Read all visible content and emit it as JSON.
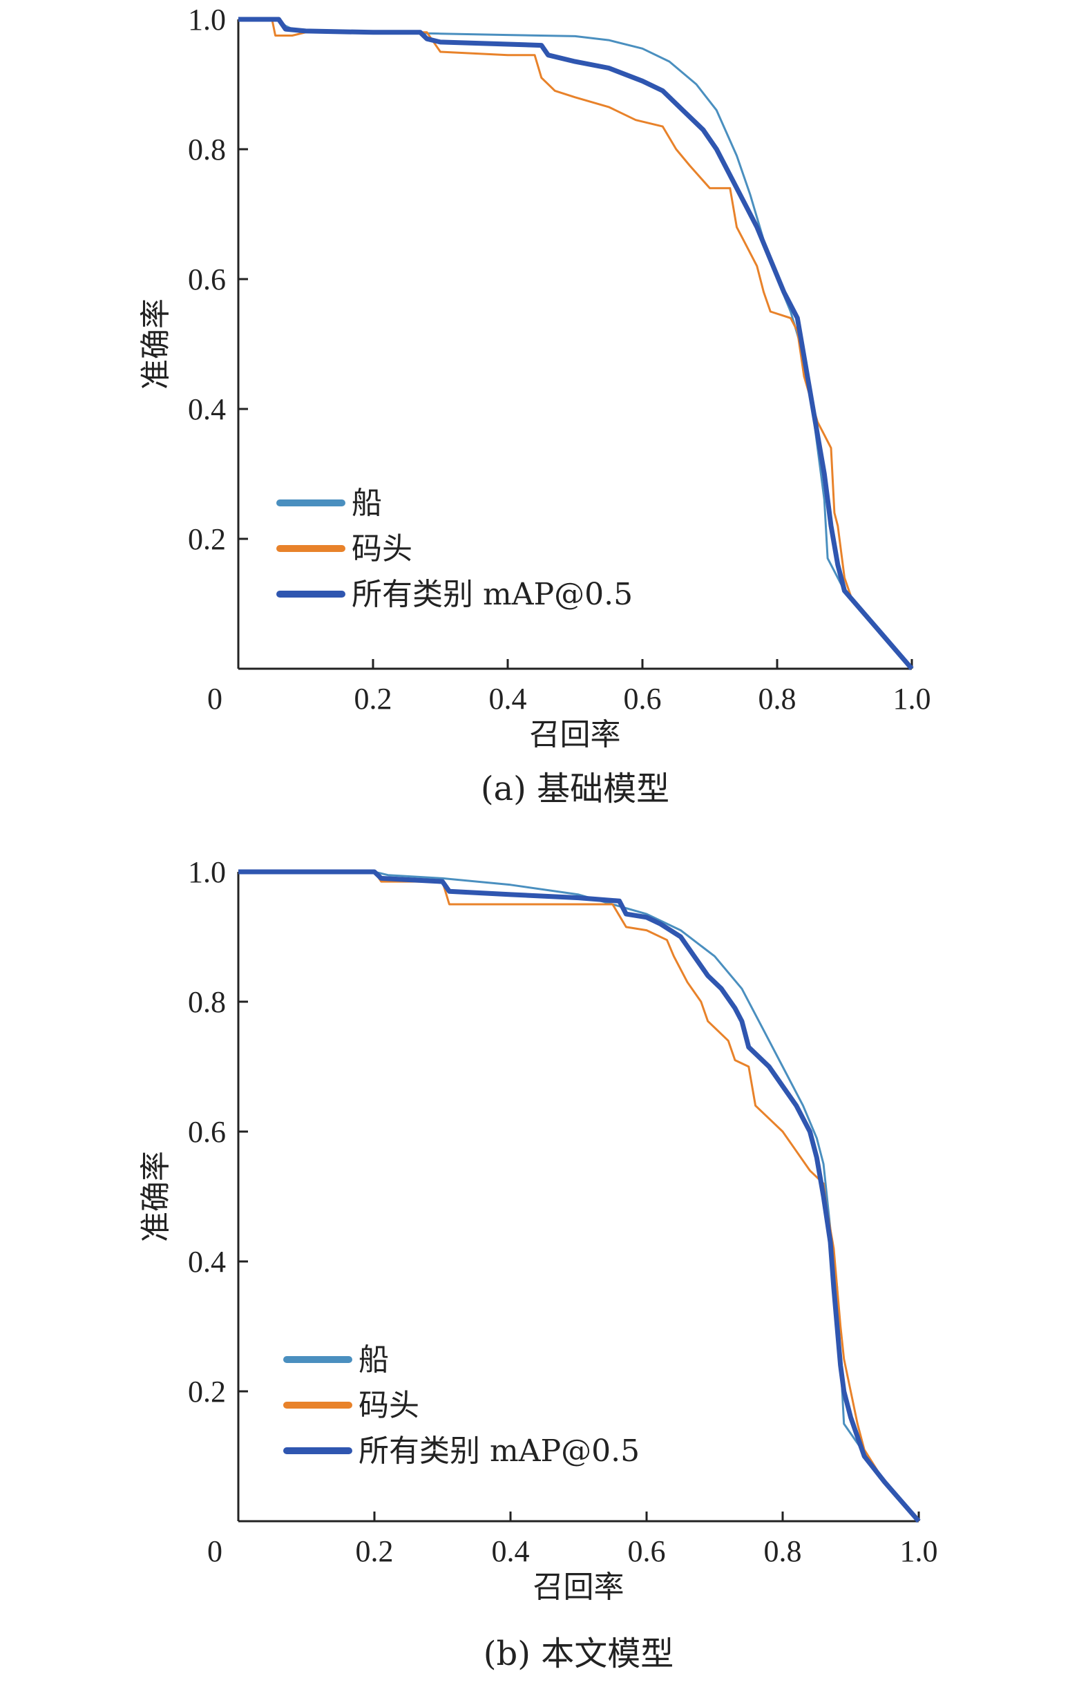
{
  "chart_data": [
    {
      "type": "line",
      "caption": "(a) 基础模型",
      "xlabel": "召回率",
      "ylabel": "准确率",
      "xlim": [
        0,
        1.0
      ],
      "ylim": [
        0,
        1.0
      ],
      "x_ticks": [
        "0",
        "0.2",
        "0.4",
        "0.6",
        "0.8",
        "1.0"
      ],
      "y_ticks": [
        "0.2",
        "0.4",
        "0.6",
        "0.8",
        "1.0"
      ],
      "legend_placement": "lower-left",
      "series": [
        {
          "name": "船",
          "color": "#4a8fbf",
          "points": [
            [
              0,
              1.0
            ],
            [
              0.06,
              1.0
            ],
            [
              0.07,
              0.99
            ],
            [
              0.08,
              0.985
            ],
            [
              0.1,
              0.982
            ],
            [
              0.2,
              0.98
            ],
            [
              0.3,
              0.978
            ],
            [
              0.4,
              0.976
            ],
            [
              0.5,
              0.974
            ],
            [
              0.55,
              0.968
            ],
            [
              0.6,
              0.955
            ],
            [
              0.64,
              0.935
            ],
            [
              0.68,
              0.9
            ],
            [
              0.71,
              0.86
            ],
            [
              0.74,
              0.79
            ],
            [
              0.76,
              0.73
            ],
            [
              0.78,
              0.66
            ],
            [
              0.8,
              0.6
            ],
            [
              0.82,
              0.55
            ],
            [
              0.84,
              0.48
            ],
            [
              0.855,
              0.38
            ],
            [
              0.87,
              0.26
            ],
            [
              0.875,
              0.17
            ],
            [
              0.89,
              0.14
            ],
            [
              0.9,
              0.12
            ],
            [
              0.95,
              0.06
            ],
            [
              1.0,
              0.0
            ]
          ]
        },
        {
          "name": "码头",
          "color": "#e8822a",
          "points": [
            [
              0,
              1.0
            ],
            [
              0.05,
              1.0
            ],
            [
              0.055,
              0.975
            ],
            [
              0.08,
              0.975
            ],
            [
              0.1,
              0.98
            ],
            [
              0.28,
              0.98
            ],
            [
              0.3,
              0.95
            ],
            [
              0.4,
              0.945
            ],
            [
              0.44,
              0.945
            ],
            [
              0.45,
              0.91
            ],
            [
              0.47,
              0.89
            ],
            [
              0.5,
              0.88
            ],
            [
              0.55,
              0.865
            ],
            [
              0.59,
              0.845
            ],
            [
              0.63,
              0.835
            ],
            [
              0.65,
              0.8
            ],
            [
              0.67,
              0.775
            ],
            [
              0.7,
              0.74
            ],
            [
              0.73,
              0.74
            ],
            [
              0.74,
              0.68
            ],
            [
              0.75,
              0.66
            ],
            [
              0.77,
              0.62
            ],
            [
              0.78,
              0.58
            ],
            [
              0.79,
              0.55
            ],
            [
              0.82,
              0.54
            ],
            [
              0.83,
              0.52
            ],
            [
              0.84,
              0.45
            ],
            [
              0.86,
              0.38
            ],
            [
              0.87,
              0.36
            ],
            [
              0.88,
              0.34
            ],
            [
              0.885,
              0.24
            ],
            [
              0.89,
              0.22
            ],
            [
              0.9,
              0.14
            ],
            [
              0.91,
              0.11
            ],
            [
              0.95,
              0.06
            ],
            [
              1.0,
              0.0
            ]
          ]
        },
        {
          "name": "所有类别 mAP@0.5",
          "color": "#2f56b0",
          "points": [
            [
              0,
              1.0
            ],
            [
              0.06,
              1.0
            ],
            [
              0.07,
              0.985
            ],
            [
              0.1,
              0.982
            ],
            [
              0.2,
              0.98
            ],
            [
              0.27,
              0.98
            ],
            [
              0.28,
              0.97
            ],
            [
              0.3,
              0.965
            ],
            [
              0.45,
              0.96
            ],
            [
              0.46,
              0.945
            ],
            [
              0.5,
              0.935
            ],
            [
              0.55,
              0.925
            ],
            [
              0.6,
              0.905
            ],
            [
              0.63,
              0.89
            ],
            [
              0.66,
              0.86
            ],
            [
              0.69,
              0.83
            ],
            [
              0.71,
              0.8
            ],
            [
              0.73,
              0.76
            ],
            [
              0.75,
              0.72
            ],
            [
              0.77,
              0.68
            ],
            [
              0.79,
              0.63
            ],
            [
              0.81,
              0.58
            ],
            [
              0.83,
              0.54
            ],
            [
              0.845,
              0.45
            ],
            [
              0.86,
              0.36
            ],
            [
              0.87,
              0.3
            ],
            [
              0.88,
              0.22
            ],
            [
              0.89,
              0.16
            ],
            [
              0.9,
              0.12
            ],
            [
              0.95,
              0.06
            ],
            [
              1.0,
              0.0
            ]
          ]
        }
      ]
    },
    {
      "type": "line",
      "caption": "(b) 本文模型",
      "xlabel": "召回率",
      "ylabel": "准确率",
      "xlim": [
        0,
        1.0
      ],
      "ylim": [
        0,
        1.0
      ],
      "x_ticks": [
        "0",
        "0.2",
        "0.4",
        "0.6",
        "0.8",
        "1.0"
      ],
      "y_ticks": [
        "0.2",
        "0.4",
        "0.6",
        "0.8",
        "1.0"
      ],
      "legend_placement": "lower-left",
      "series": [
        {
          "name": "船",
          "color": "#4a8fbf",
          "points": [
            [
              0,
              1.0
            ],
            [
              0.2,
              1.0
            ],
            [
              0.22,
              0.995
            ],
            [
              0.3,
              0.99
            ],
            [
              0.4,
              0.98
            ],
            [
              0.5,
              0.965
            ],
            [
              0.55,
              0.95
            ],
            [
              0.6,
              0.935
            ],
            [
              0.65,
              0.91
            ],
            [
              0.7,
              0.87
            ],
            [
              0.74,
              0.82
            ],
            [
              0.77,
              0.76
            ],
            [
              0.8,
              0.7
            ],
            [
              0.83,
              0.64
            ],
            [
              0.85,
              0.59
            ],
            [
              0.86,
              0.55
            ],
            [
              0.87,
              0.45
            ],
            [
              0.88,
              0.36
            ],
            [
              0.885,
              0.25
            ],
            [
              0.89,
              0.15
            ],
            [
              0.91,
              0.12
            ],
            [
              0.95,
              0.06
            ],
            [
              1.0,
              0.0
            ]
          ]
        },
        {
          "name": "码头",
          "color": "#e8822a",
          "points": [
            [
              0,
              1.0
            ],
            [
              0.2,
              1.0
            ],
            [
              0.21,
              0.985
            ],
            [
              0.3,
              0.985
            ],
            [
              0.31,
              0.95
            ],
            [
              0.45,
              0.95
            ],
            [
              0.55,
              0.95
            ],
            [
              0.57,
              0.915
            ],
            [
              0.6,
              0.91
            ],
            [
              0.63,
              0.895
            ],
            [
              0.64,
              0.87
            ],
            [
              0.66,
              0.83
            ],
            [
              0.68,
              0.8
            ],
            [
              0.69,
              0.77
            ],
            [
              0.7,
              0.76
            ],
            [
              0.72,
              0.74
            ],
            [
              0.73,
              0.71
            ],
            [
              0.75,
              0.7
            ],
            [
              0.76,
              0.64
            ],
            [
              0.78,
              0.62
            ],
            [
              0.8,
              0.6
            ],
            [
              0.82,
              0.57
            ],
            [
              0.84,
              0.54
            ],
            [
              0.86,
              0.52
            ],
            [
              0.865,
              0.48
            ],
            [
              0.875,
              0.42
            ],
            [
              0.88,
              0.36
            ],
            [
              0.885,
              0.3
            ],
            [
              0.89,
              0.25
            ],
            [
              0.9,
              0.2
            ],
            [
              0.91,
              0.15
            ],
            [
              0.92,
              0.11
            ],
            [
              0.95,
              0.06
            ],
            [
              1.0,
              0.0
            ]
          ]
        },
        {
          "name": "所有类别 mAP@0.5",
          "color": "#2f56b0",
          "points": [
            [
              0,
              1.0
            ],
            [
              0.2,
              1.0
            ],
            [
              0.21,
              0.99
            ],
            [
              0.3,
              0.985
            ],
            [
              0.31,
              0.97
            ],
            [
              0.4,
              0.965
            ],
            [
              0.5,
              0.96
            ],
            [
              0.56,
              0.955
            ],
            [
              0.57,
              0.935
            ],
            [
              0.6,
              0.93
            ],
            [
              0.62,
              0.92
            ],
            [
              0.65,
              0.9
            ],
            [
              0.67,
              0.87
            ],
            [
              0.69,
              0.84
            ],
            [
              0.71,
              0.82
            ],
            [
              0.73,
              0.79
            ],
            [
              0.74,
              0.77
            ],
            [
              0.75,
              0.73
            ],
            [
              0.78,
              0.7
            ],
            [
              0.8,
              0.67
            ],
            [
              0.82,
              0.64
            ],
            [
              0.84,
              0.6
            ],
            [
              0.85,
              0.56
            ],
            [
              0.86,
              0.5
            ],
            [
              0.87,
              0.43
            ],
            [
              0.875,
              0.36
            ],
            [
              0.88,
              0.3
            ],
            [
              0.885,
              0.24
            ],
            [
              0.89,
              0.2
            ],
            [
              0.9,
              0.16
            ],
            [
              0.91,
              0.13
            ],
            [
              0.92,
              0.1
            ],
            [
              0.95,
              0.06
            ],
            [
              1.0,
              0.0
            ]
          ]
        }
      ]
    }
  ]
}
